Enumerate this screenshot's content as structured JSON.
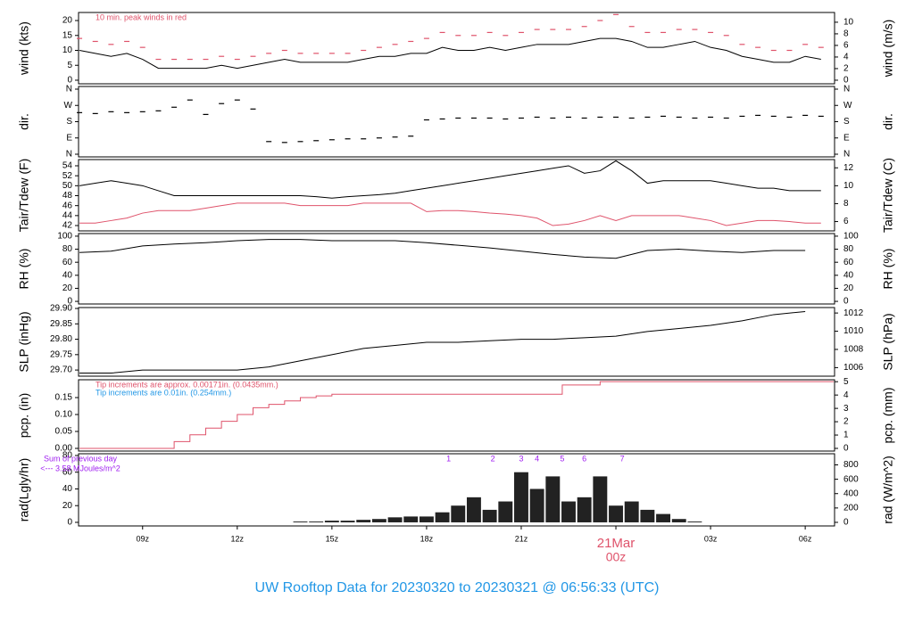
{
  "title": "UW Rooftop Data for 20230320  to  20230321 @ 06:56:33  (UTC)",
  "chart_data": [
    {
      "type": "line",
      "ylabel": "wind (kts)",
      "y2label": "wind (m/s)",
      "xlim": [
        6.97,
        30.93
      ],
      "ylim": [
        -1.2,
        22.7
      ],
      "yticks": [
        0,
        5,
        10,
        15,
        20
      ],
      "y2lim": [
        -0.62,
        11.68
      ],
      "y2ticks": [
        0,
        2,
        4,
        6,
        8,
        10
      ],
      "annotations": [
        {
          "text": "10 min. peak winds in red",
          "color": "#df536b"
        }
      ],
      "x": [
        7,
        7.5,
        8,
        8.5,
        9,
        9.5,
        10,
        10.5,
        11,
        11.5,
        12,
        12.5,
        13,
        13.5,
        14,
        14.5,
        15,
        15.5,
        16,
        16.5,
        17,
        17.5,
        18,
        18.5,
        19,
        19.5,
        20,
        20.5,
        21,
        21.5,
        22,
        22.5,
        23,
        23.5,
        24,
        24.5,
        25,
        25.5,
        26,
        26.5,
        27,
        27.5,
        28,
        28.5,
        29,
        29.5,
        30,
        30.5
      ],
      "series": [
        {
          "color": "#000000",
          "values": [
            10,
            9,
            8,
            9,
            7,
            4,
            4,
            4,
            4,
            5,
            4,
            5,
            6,
            7,
            6,
            6,
            6,
            6,
            7,
            8,
            8,
            9,
            9,
            11,
            10,
            10,
            11,
            10,
            11,
            12,
            12,
            12,
            13,
            14,
            14,
            13,
            11,
            11,
            12,
            13,
            11,
            10,
            8,
            7,
            6,
            6,
            8,
            7
          ]
        },
        {
          "color": "#df536b",
          "marker": "dash",
          "values": [
            14,
            13,
            12,
            13,
            11,
            7,
            7,
            7,
            7,
            8,
            7,
            8,
            9,
            10,
            9,
            9,
            9,
            9,
            10,
            11,
            12,
            13,
            14,
            16,
            15,
            15,
            16,
            15,
            16,
            17,
            17,
            17,
            18,
            20,
            22,
            18,
            16,
            16,
            17,
            17,
            16,
            15,
            12,
            11,
            10,
            10,
            12,
            11
          ]
        }
      ]
    },
    {
      "type": "scatter",
      "ylabel": "dir.",
      "y2label": "dir.",
      "xlim": [
        6.97,
        30.93
      ],
      "ylim": [
        -14.8,
        374.8
      ],
      "yticks": [
        {
          "value": 0,
          "label": "N"
        },
        {
          "value": 90,
          "label": "E"
        },
        {
          "value": 180,
          "label": "S"
        },
        {
          "value": 270,
          "label": "W"
        },
        {
          "value": 360,
          "label": "N"
        }
      ],
      "y2lim": [
        -14.8,
        374.8
      ],
      "y2ticks": [
        {
          "value": 0,
          "label": "N"
        },
        {
          "value": 90,
          "label": "E"
        },
        {
          "value": 180,
          "label": "S"
        },
        {
          "value": 270,
          "label": "W"
        },
        {
          "value": 360,
          "label": "N"
        }
      ],
      "x": [
        7,
        7.5,
        8,
        8.5,
        9,
        9.5,
        10,
        10.5,
        11,
        11.5,
        12,
        12.5,
        13,
        13.5,
        14,
        14.5,
        15,
        15.5,
        16,
        16.5,
        17,
        17.5,
        18,
        18.5,
        19,
        19.5,
        20,
        20.5,
        21,
        21.5,
        22,
        22.5,
        23,
        23.5,
        24,
        24.5,
        25,
        25.5,
        26,
        26.5,
        27,
        27.5,
        28,
        28.5,
        29,
        29.5,
        30,
        30.5
      ],
      "series": [
        {
          "color": "#000000",
          "marker": "dash",
          "values": [
            230,
            225,
            235,
            230,
            235,
            240,
            260,
            300,
            220,
            280,
            300,
            250,
            70,
            65,
            70,
            75,
            80,
            85,
            85,
            90,
            95,
            100,
            190,
            195,
            200,
            200,
            200,
            195,
            200,
            205,
            200,
            205,
            200,
            205,
            205,
            200,
            205,
            210,
            205,
            200,
            205,
            200,
            210,
            215,
            210,
            205,
            215,
            210
          ]
        }
      ]
    },
    {
      "type": "line",
      "ylabel": "Tair/Tdew (F)",
      "y2label": "Tair/Tdew (C)",
      "xlim": [
        6.97,
        30.93
      ],
      "ylim": [
        40.93,
        55.25
      ],
      "yticks": [
        42,
        44,
        46,
        48,
        50,
        52,
        54
      ],
      "y2lim": [
        4.96,
        12.92
      ],
      "y2ticks": [
        6,
        8,
        10,
        12
      ],
      "x": [
        7,
        7.5,
        8,
        8.5,
        9,
        9.5,
        10,
        10.5,
        11,
        11.5,
        12,
        12.5,
        13,
        13.5,
        14,
        14.5,
        15,
        15.5,
        16,
        16.5,
        17,
        17.5,
        18,
        18.5,
        19,
        19.5,
        20,
        20.5,
        21,
        21.5,
        22,
        22.5,
        23,
        23.5,
        24,
        24.5,
        25,
        25.5,
        26,
        26.5,
        27,
        27.5,
        28,
        28.5,
        29,
        29.5,
        30,
        30.5
      ],
      "series": [
        {
          "color": "#000000",
          "values": [
            50,
            50.5,
            51,
            50.5,
            50,
            49,
            48,
            48,
            48,
            48,
            48,
            48,
            48,
            48,
            48,
            47.8,
            47.5,
            47.8,
            48,
            48.2,
            48.5,
            49,
            49.5,
            50,
            50.5,
            51,
            51.5,
            52,
            52.5,
            53,
            53.5,
            54,
            52.5,
            53,
            55,
            53,
            50.5,
            51,
            51,
            51,
            51,
            50.5,
            50,
            49.5,
            49.5,
            49,
            49,
            49
          ]
        },
        {
          "color": "#df536b",
          "values": [
            42.5,
            42.5,
            43,
            43.5,
            44.5,
            45,
            45,
            45,
            45.5,
            46,
            46.5,
            46.5,
            46.5,
            46.5,
            46,
            46,
            46,
            46,
            46.5,
            46.5,
            46.5,
            46.5,
            44.8,
            45,
            45,
            44.8,
            44.5,
            44.3,
            44,
            43.5,
            42,
            42.3,
            43,
            44,
            43,
            44,
            44,
            44,
            44,
            43.5,
            43,
            42,
            42.5,
            43,
            43,
            42.8,
            42.5,
            42.5
          ]
        }
      ]
    },
    {
      "type": "line",
      "ylabel": "RH (%)",
      "y2label": "RH (%)",
      "xlim": [
        6.97,
        30.93
      ],
      "ylim": [
        -4,
        104
      ],
      "yticks": [
        0,
        20,
        40,
        60,
        80,
        100
      ],
      "y2lim": [
        -4,
        104
      ],
      "y2ticks": [
        0,
        20,
        40,
        60,
        80,
        100
      ],
      "x": [
        7,
        8,
        9,
        10,
        11,
        12,
        13,
        14,
        15,
        16,
        17,
        18,
        19,
        20,
        21,
        22,
        23,
        24,
        25,
        26,
        27,
        28,
        29,
        30
      ],
      "series": [
        {
          "color": "#000000",
          "values": [
            75,
            77,
            85,
            88,
            90,
            93,
            95,
            95,
            93,
            93,
            93,
            90,
            86,
            82,
            77,
            72,
            68,
            66,
            78,
            80,
            77,
            75,
            78,
            78
          ]
        }
      ]
    },
    {
      "type": "line",
      "ylabel": "SLP (inHg)",
      "y2label": "SLP (hPa)",
      "xlim": [
        6.97,
        30.93
      ],
      "ylim": [
        29.68,
        29.903
      ],
      "yticks": [
        {
          "value": 29.7,
          "label": "29.70"
        },
        {
          "value": 29.75,
          "label": "29.75"
        },
        {
          "value": 29.8,
          "label": "29.80"
        },
        {
          "value": 29.85,
          "label": "29.85"
        },
        {
          "value": 29.9,
          "label": "29.90"
        }
      ],
      "y2lim": [
        1005.06,
        1012.6
      ],
      "y2ticks": [
        1006,
        1008,
        1010,
        1012
      ],
      "x": [
        7,
        8,
        9,
        10,
        11,
        12,
        13,
        14,
        15,
        16,
        17,
        18,
        19,
        20,
        21,
        22,
        23,
        24,
        25,
        26,
        27,
        28,
        29,
        30
      ],
      "series": [
        {
          "color": "#000000",
          "values": [
            29.69,
            29.69,
            29.7,
            29.7,
            29.7,
            29.7,
            29.71,
            29.73,
            29.75,
            29.77,
            29.78,
            29.79,
            29.79,
            29.795,
            29.8,
            29.8,
            29.805,
            29.81,
            29.825,
            29.835,
            29.845,
            29.86,
            29.88,
            29.89
          ]
        }
      ]
    },
    {
      "type": "line",
      "ylabel": "pcp. (in)",
      "y2label": "pcp. (mm)",
      "step": true,
      "xlim": [
        6.97,
        30.93
      ],
      "ylim": [
        -0.0079,
        0.2026
      ],
      "yticks": [
        {
          "value": 0,
          "label": "0.00"
        },
        {
          "value": 0.05,
          "label": "0.05"
        },
        {
          "value": 0.1,
          "label": "0.10"
        },
        {
          "value": 0.15,
          "label": "0.15"
        }
      ],
      "y2lim": [
        -0.2,
        5.146
      ],
      "y2ticks": [
        0,
        1,
        2,
        3,
        4,
        5
      ],
      "annotations": [
        {
          "text": "Tip increments are approx. 0.00171in. (0.0435mm.)",
          "color": "#df536b"
        },
        {
          "text": "Tip increments are 0.01in. (0.254mm.)",
          "color": "#2297e6"
        }
      ],
      "x": [
        7,
        9.5,
        10,
        10.5,
        11,
        11.5,
        12,
        12.5,
        13,
        13.5,
        14,
        14.5,
        15,
        22.3,
        23.5,
        30.9
      ],
      "series": [
        {
          "color": "#df536b",
          "values": [
            0,
            0,
            0.02,
            0.04,
            0.06,
            0.08,
            0.1,
            0.12,
            0.13,
            0.14,
            0.15,
            0.155,
            0.16,
            0.187,
            0.197,
            0.197
          ]
        }
      ]
    },
    {
      "type": "bar",
      "ylabel": "rad(Lgly/hr)",
      "y2label": "rad (W/m^2)",
      "xlim": [
        6.97,
        30.93
      ],
      "ylim": [
        -4.3,
        82.1
      ],
      "yticks": [
        0,
        20,
        40,
        60,
        80
      ],
      "y2lim": [
        -50,
        955
      ],
      "y2ticks": [
        0,
        200,
        400,
        600,
        800
      ],
      "side_notes": [
        {
          "text": "Sum of previous day",
          "color": "#a020f0"
        },
        {
          "text": "<--- 3.58 MJoules/m^2",
          "color": "#a020f0"
        }
      ],
      "markers": [
        {
          "text": "1",
          "x": 18.7
        },
        {
          "text": "2",
          "x": 20.1
        },
        {
          "text": "3",
          "x": 21
        },
        {
          "text": "4",
          "x": 21.5
        },
        {
          "text": "5",
          "x": 22.3
        },
        {
          "text": "6",
          "x": 23
        },
        {
          "text": "7",
          "x": 24.2
        }
      ],
      "marker_color": "#a020f0",
      "xticks": [
        {
          "value": 9,
          "label": "09z"
        },
        {
          "value": 12,
          "label": "12z"
        },
        {
          "value": 15,
          "label": "15z"
        },
        {
          "value": 18,
          "label": "18z"
        },
        {
          "value": 21,
          "label": "21z"
        },
        {
          "value": 24,
          "label": "00z",
          "color": "#df536b"
        },
        {
          "value": 27,
          "label": "03z"
        },
        {
          "value": 30,
          "label": "06z"
        }
      ],
      "date_annotation": {
        "text": "21Mar",
        "x": 24,
        "color": "#df536b"
      },
      "x": [
        14,
        14.5,
        15,
        15.5,
        16,
        16.5,
        17,
        17.5,
        18,
        18.5,
        19,
        19.5,
        20,
        20.5,
        21,
        21.5,
        22,
        22.5,
        23,
        23.5,
        24,
        24.5,
        25,
        25.5,
        26,
        26.5
      ],
      "series": [
        {
          "color": "#222222",
          "values": [
            1,
            1,
            2,
            2,
            3,
            4,
            6,
            7,
            7,
            12,
            20,
            30,
            15,
            25,
            60,
            40,
            55,
            25,
            30,
            55,
            20,
            25,
            15,
            10,
            4,
            1
          ]
        }
      ]
    }
  ],
  "title_color": "#2297e6"
}
